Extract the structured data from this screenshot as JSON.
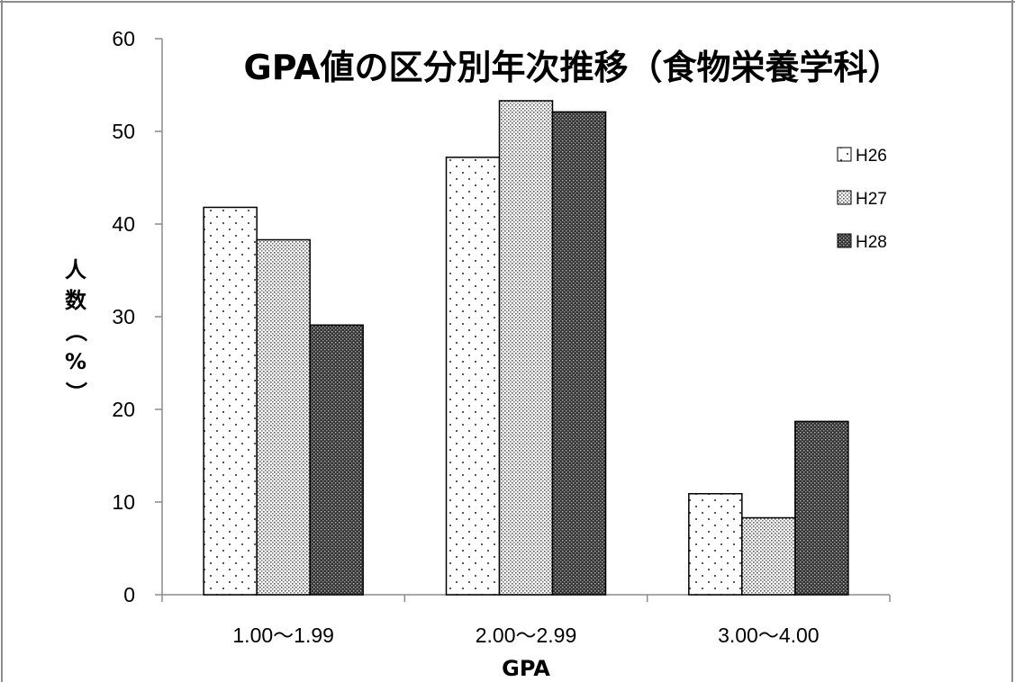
{
  "chart_data": {
    "type": "bar",
    "title": "GPA値の区分別年次推移（食物栄養学科）",
    "xlabel": "GPA",
    "ylabel": "人数（%）",
    "categories": [
      "1.00〜1.99",
      "2.00〜2.99",
      "3.00〜4.00"
    ],
    "series": [
      {
        "name": "H26",
        "values": [
          41.8,
          47.2,
          10.9
        ],
        "pattern": "sparse-dots"
      },
      {
        "name": "H27",
        "values": [
          38.3,
          53.3,
          8.3
        ],
        "pattern": "dense-dots"
      },
      {
        "name": "H28",
        "values": [
          29.1,
          52.1,
          18.7
        ],
        "pattern": "dark-checker"
      }
    ],
    "ylim": [
      0,
      60
    ],
    "yticks": [
      0,
      10,
      20,
      30,
      40,
      50,
      60
    ],
    "grid": false,
    "legend_position": "right"
  }
}
